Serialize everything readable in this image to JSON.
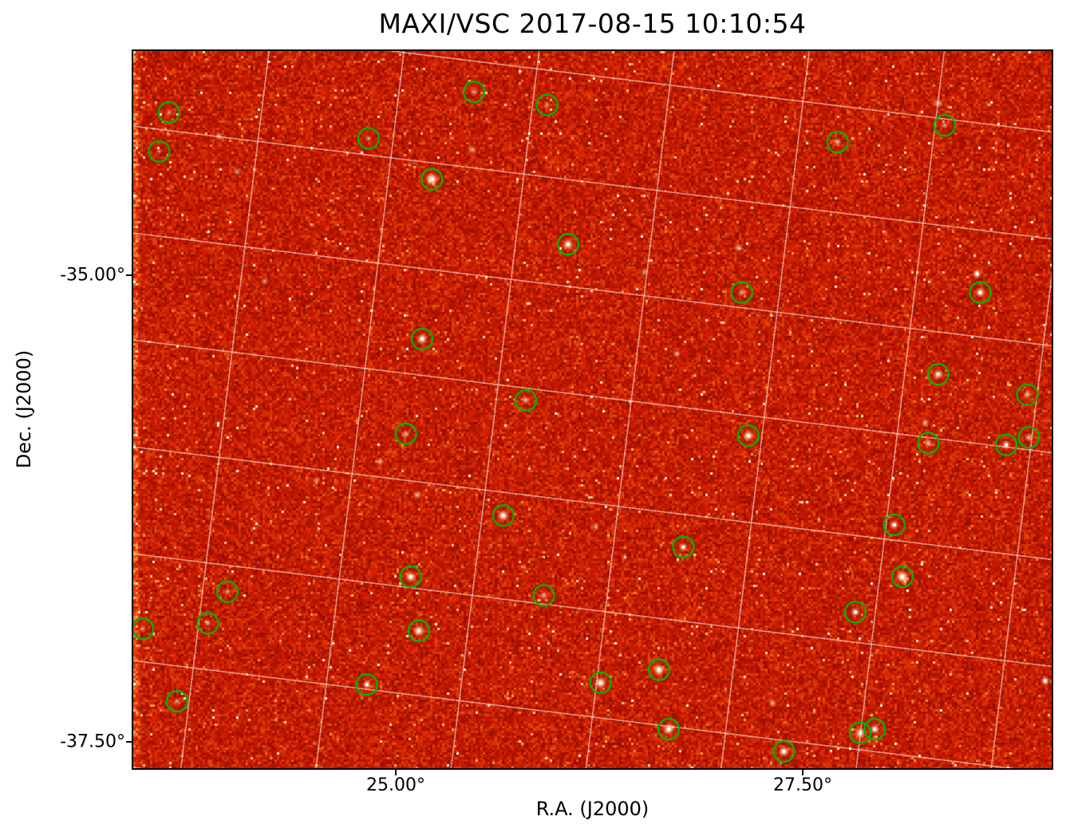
{
  "chart_data": {
    "type": "heatmap",
    "title": "MAXI/VSC 2017-08-15 10:10:54",
    "xlabel": "R.A. (J2000)",
    "ylabel": "Dec. (J2000)",
    "xlim": [
      23.38,
      29.04
    ],
    "ylim": [
      -37.65,
      -33.79
    ],
    "x_ticks": [
      {
        "ra": 25.0,
        "label": "25.00°"
      },
      {
        "ra": 27.5,
        "label": "27.50°"
      }
    ],
    "y_ticks": [
      {
        "dec": -35.0,
        "label": "-35.00°"
      },
      {
        "dec": -37.5,
        "label": "-37.50°"
      }
    ],
    "grid": true,
    "grid_tilt_deg": 7,
    "legend": null,
    "colors": {
      "background_hot": "#cc1a00",
      "grid_line": "#ffffff",
      "marker": "#00b400",
      "source": "#ffffff"
    },
    "sources": [
      {
        "ra": 23.6,
        "dec": -34.12,
        "circled": true,
        "f": 0.35
      },
      {
        "ra": 23.54,
        "dec": -34.33,
        "circled": true,
        "f": 0.3
      },
      {
        "ra": 24.83,
        "dec": -34.26,
        "circled": true,
        "f": 0.35
      },
      {
        "ra": 25.48,
        "dec": -34.01,
        "circled": true,
        "f": 0.4
      },
      {
        "ra": 25.93,
        "dec": -34.08,
        "circled": true,
        "f": 0.35
      },
      {
        "ra": 25.22,
        "dec": -34.48,
        "circled": true,
        "f": 1.0
      },
      {
        "ra": 26.06,
        "dec": -34.83,
        "circled": true,
        "f": 0.8
      },
      {
        "ra": 27.72,
        "dec": -34.28,
        "circled": true,
        "f": 0.5
      },
      {
        "ra": 28.38,
        "dec": -34.19,
        "circled": true,
        "f": 0.4
      },
      {
        "ra": 27.13,
        "dec": -35.09,
        "circled": true,
        "f": 0.45
      },
      {
        "ra": 28.6,
        "dec": -35.09,
        "circled": true,
        "f": 0.7
      },
      {
        "ra": 25.16,
        "dec": -35.34,
        "circled": true,
        "f": 0.8
      },
      {
        "ra": 25.8,
        "dec": -35.67,
        "circled": true,
        "f": 0.5
      },
      {
        "ra": 28.34,
        "dec": -35.53,
        "circled": true,
        "f": 0.7
      },
      {
        "ra": 28.89,
        "dec": -35.64,
        "circled": true,
        "f": 0.5
      },
      {
        "ra": 25.06,
        "dec": -35.85,
        "circled": true,
        "f": 0.5
      },
      {
        "ra": 27.17,
        "dec": -35.86,
        "circled": true,
        "f": 0.8
      },
      {
        "ra": 28.28,
        "dec": -35.9,
        "circled": true,
        "f": 0.5
      },
      {
        "ra": 28.76,
        "dec": -35.91,
        "circled": true,
        "f": 0.6
      },
      {
        "ra": 28.9,
        "dec": -35.87,
        "circled": true,
        "f": 0.5
      },
      {
        "ra": 25.66,
        "dec": -36.29,
        "circled": true,
        "f": 0.85
      },
      {
        "ra": 28.07,
        "dec": -36.34,
        "circled": true,
        "f": 0.6
      },
      {
        "ra": 26.77,
        "dec": -36.46,
        "circled": true,
        "f": 0.6
      },
      {
        "ra": 25.09,
        "dec": -36.62,
        "circled": true,
        "f": 0.8
      },
      {
        "ra": 28.12,
        "dec": -36.62,
        "circled": true,
        "f": 1.0
      },
      {
        "ra": 23.96,
        "dec": -36.7,
        "circled": true,
        "f": 0.4
      },
      {
        "ra": 25.91,
        "dec": -36.72,
        "circled": true,
        "f": 0.5
      },
      {
        "ra": 27.83,
        "dec": -36.81,
        "circled": true,
        "f": 0.6
      },
      {
        "ra": 23.44,
        "dec": -36.9,
        "circled": true,
        "f": 0.3
      },
      {
        "ra": 23.84,
        "dec": -36.87,
        "circled": true,
        "f": 0.35
      },
      {
        "ra": 25.14,
        "dec": -36.91,
        "circled": true,
        "f": 0.85
      },
      {
        "ra": 26.62,
        "dec": -37.12,
        "circled": true,
        "f": 0.9
      },
      {
        "ra": 24.82,
        "dec": -37.2,
        "circled": true,
        "f": 0.6
      },
      {
        "ra": 26.26,
        "dec": -37.19,
        "circled": true,
        "f": 0.9
      },
      {
        "ra": 23.65,
        "dec": -37.29,
        "circled": true,
        "f": 0.4
      },
      {
        "ra": 26.68,
        "dec": -37.44,
        "circled": true,
        "f": 0.85
      },
      {
        "ra": 27.39,
        "dec": -37.56,
        "circled": true,
        "f": 0.8
      },
      {
        "ra": 27.86,
        "dec": -37.46,
        "circled": true,
        "f": 0.8
      },
      {
        "ra": 27.95,
        "dec": -37.44,
        "circled": true,
        "f": 0.7
      },
      {
        "ra": 23.91,
        "dec": -34.25,
        "circled": false,
        "f": 0.45
      },
      {
        "ra": 24.02,
        "dec": -34.44,
        "circled": false,
        "f": 0.4
      },
      {
        "ra": 25.47,
        "dec": -34.32,
        "circled": false,
        "f": 0.5
      },
      {
        "ra": 28.34,
        "dec": -34.07,
        "circled": false,
        "f": 0.55
      },
      {
        "ra": 27.11,
        "dec": -34.85,
        "circled": false,
        "f": 0.5
      },
      {
        "ra": 28.58,
        "dec": -34.99,
        "circled": false,
        "f": 0.6
      },
      {
        "ra": 26.53,
        "dec": -34.98,
        "circled": false,
        "f": 0.4
      },
      {
        "ra": 24.19,
        "dec": -35.03,
        "circled": false,
        "f": 0.4
      },
      {
        "ra": 26.73,
        "dec": -35.42,
        "circled": false,
        "f": 0.45
      },
      {
        "ra": 28.26,
        "dec": -35.79,
        "circled": false,
        "f": 0.5
      },
      {
        "ra": 24.9,
        "dec": -36.0,
        "circled": false,
        "f": 0.45
      },
      {
        "ra": 25.13,
        "dec": -36.18,
        "circled": false,
        "f": 0.5
      },
      {
        "ra": 26.23,
        "dec": -36.35,
        "circled": false,
        "f": 0.45
      },
      {
        "ra": 24.51,
        "dec": -36.1,
        "circled": false,
        "f": 0.35
      },
      {
        "ra": 29.0,
        "dec": -37.18,
        "circled": false,
        "f": 0.6
      },
      {
        "ra": 27.32,
        "dec": -37.3,
        "circled": false,
        "f": 0.45
      }
    ]
  }
}
